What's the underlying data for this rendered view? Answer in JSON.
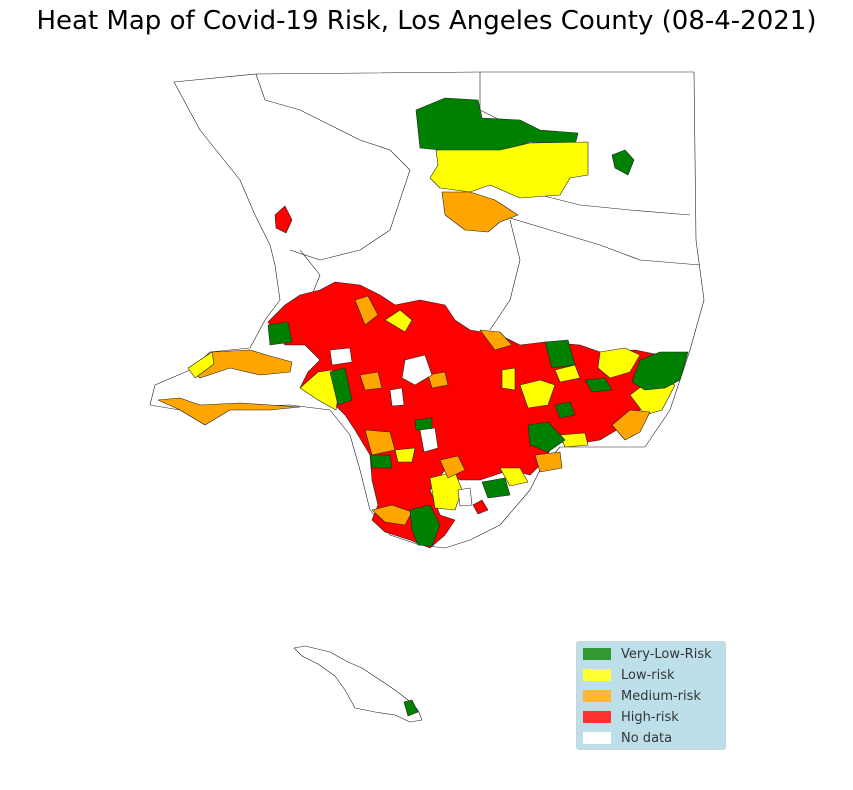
{
  "title": "Heat Map of Covid-19 Risk, Los Angeles County (08-4-2021)",
  "legend": [
    {
      "label": "Very-Low-Risk",
      "color": "#008000"
    },
    {
      "label": "Low-risk",
      "color": "#ffff00"
    },
    {
      "label": "Medium-risk",
      "color": "#ffa500"
    },
    {
      "label": "High-risk",
      "color": "#ff0000"
    },
    {
      "label": "No data",
      "color": "#ffffff"
    }
  ]
}
